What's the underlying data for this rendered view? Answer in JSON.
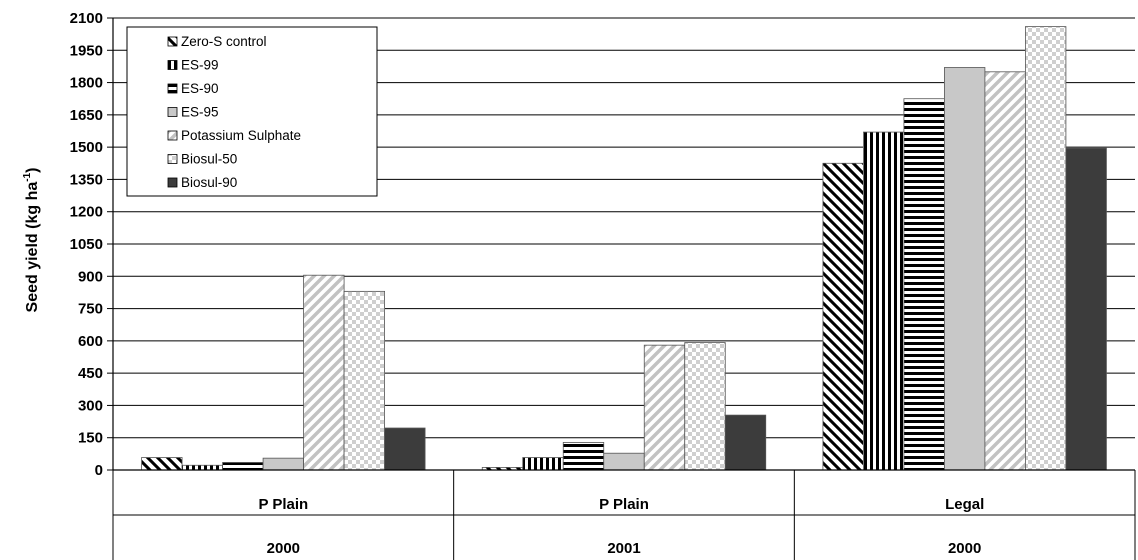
{
  "chart_data": {
    "type": "bar",
    "ylabel": "Seed yield (kg ha-1)",
    "ylabel_parts": {
      "main": "Seed yield (kg ha",
      "exponent": "-1",
      "close": ")"
    },
    "ylim": [
      0,
      2100
    ],
    "yticks": [
      "0",
      "150",
      "300",
      "450",
      "600",
      "750",
      "900",
      "1050",
      "1200",
      "1350",
      "1500",
      "1650",
      "1800",
      "1950",
      "2100"
    ],
    "grid": true,
    "legend_position": "top-left",
    "categories": [
      {
        "name": "P Plain",
        "year": "2000"
      },
      {
        "name": "P Plain",
        "year": "2001"
      },
      {
        "name": "Legal",
        "year": "2000"
      }
    ],
    "series": [
      {
        "name": "Zero-S control",
        "pattern": "diag-left",
        "values": [
          58,
          12,
          1425
        ]
      },
      {
        "name": "ES-99",
        "pattern": "vertical",
        "values": [
          22,
          58,
          1570
        ]
      },
      {
        "name": "ES-90",
        "pattern": "horizontal",
        "values": [
          35,
          128,
          1725
        ]
      },
      {
        "name": "ES-95",
        "pattern": "light-gray",
        "values": [
          55,
          78,
          1870
        ]
      },
      {
        "name": "Potassium Sulphate",
        "pattern": "diag-right",
        "values": [
          905,
          580,
          1850
        ]
      },
      {
        "name": "Biosul-50",
        "pattern": "checker",
        "values": [
          830,
          592,
          2060
        ]
      },
      {
        "name": "Biosul-90",
        "pattern": "dark-gray",
        "values": [
          195,
          255,
          1495
        ]
      }
    ],
    "colors": {
      "light_gray": "#c8c8c8",
      "dark_gray": "#3c3c3c",
      "grid": "#000000"
    }
  }
}
